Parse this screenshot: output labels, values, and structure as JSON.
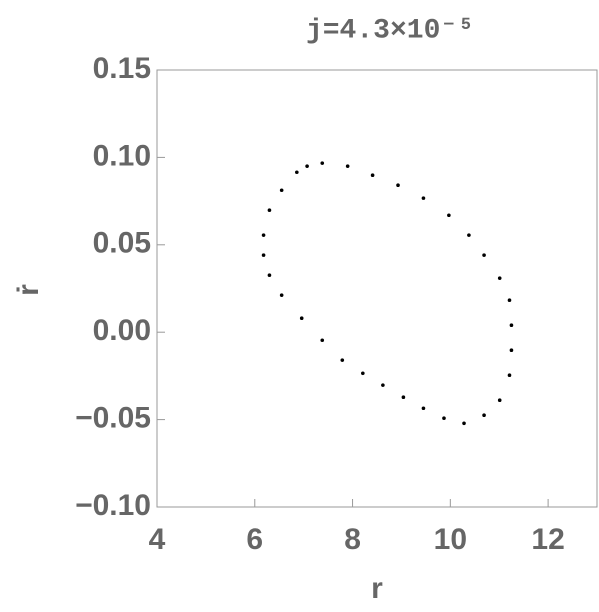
{
  "chart_data": {
    "type": "scatter",
    "title": "j=4.3×10⁻⁵",
    "x_label": "r",
    "y_label": "ṙ",
    "xlim": [
      4,
      13
    ],
    "ylim": [
      -0.1,
      0.15
    ],
    "xticks": [
      4,
      6,
      8,
      10,
      12
    ],
    "yticks": [
      {
        "value": -0.1,
        "label": "−0.10"
      },
      {
        "value": -0.05,
        "label": "−0.05"
      },
      {
        "value": 0,
        "label": "0.00"
      },
      {
        "value": 0.05,
        "label": "0.05"
      },
      {
        "value": 0.1,
        "label": "0.10"
      },
      0.15
    ],
    "color": "#000000",
    "x": [
      7.38,
      7.9,
      8.41,
      8.93,
      9.45,
      9.97,
      10.38,
      10.69,
      11.01,
      11.21,
      11.25,
      11.25,
      11.21,
      11.01,
      10.69,
      10.28,
      9.87,
      9.45,
      9.04,
      8.62,
      8.21,
      7.79,
      7.38,
      6.96,
      6.55,
      6.3,
      6.18,
      6.18,
      6.3,
      6.55,
      6.86,
      7.07
    ],
    "y": [
      0.0967,
      0.095,
      0.0898,
      0.0841,
      0.0767,
      0.0669,
      0.0555,
      0.0441,
      0.0309,
      0.0183,
      0.004,
      -0.0103,
      -0.0246,
      -0.0389,
      -0.0475,
      -0.0521,
      -0.0492,
      -0.0435,
      -0.0372,
      -0.0303,
      -0.0235,
      -0.016,
      -0.0046,
      0.008,
      0.0212,
      0.0326,
      0.0441,
      0.0555,
      0.0698,
      0.0812,
      0.0915,
      0.095
    ]
  }
}
